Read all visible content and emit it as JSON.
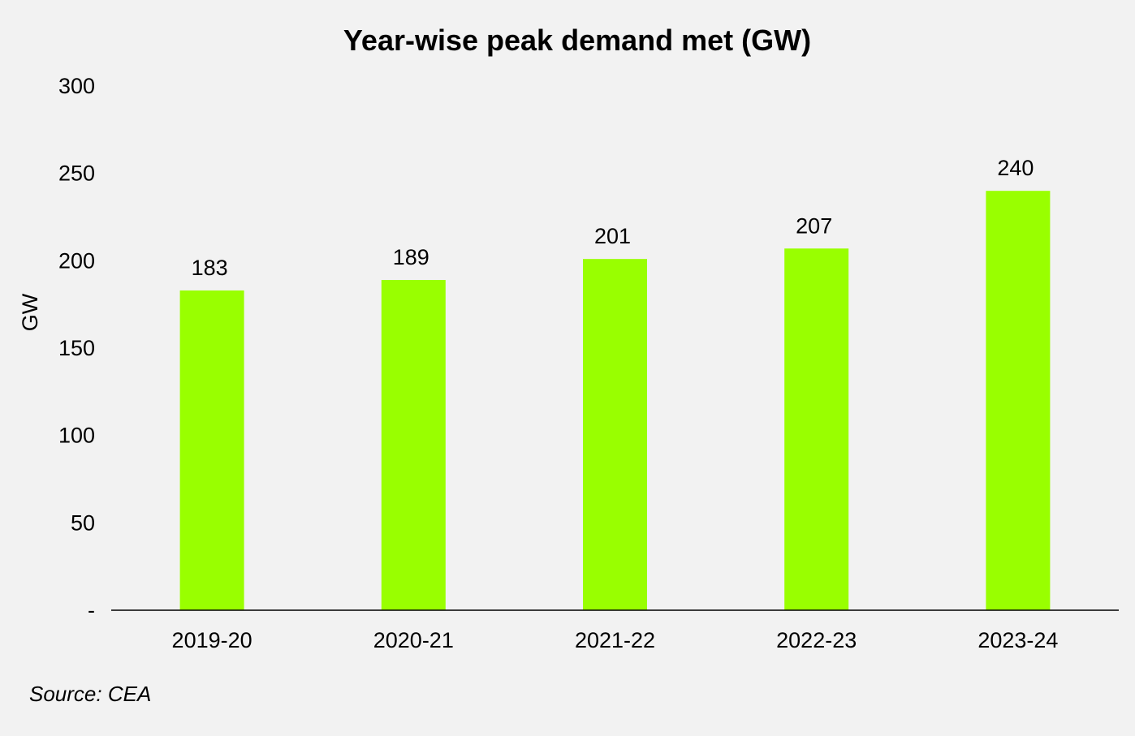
{
  "chart_data": {
    "type": "bar",
    "title": "Year-wise peak demand met (GW)",
    "xlabel": "",
    "ylabel": "GW",
    "categories": [
      "2019-20",
      "2020-21",
      "2021-22",
      "2022-23",
      "2023-24"
    ],
    "values": [
      183,
      189,
      201,
      207,
      240
    ],
    "data_labels": [
      "183",
      "189",
      "201",
      "207",
      "240"
    ],
    "ylim": [
      0,
      300
    ],
    "yticks": [
      0,
      50,
      100,
      150,
      200,
      250,
      300
    ],
    "ytick_labels": [
      "-",
      "50",
      "100",
      "150",
      "200",
      "250",
      "300"
    ],
    "bar_color": "#99ff00",
    "grid": false,
    "legend": "none"
  },
  "source": "Source: CEA"
}
